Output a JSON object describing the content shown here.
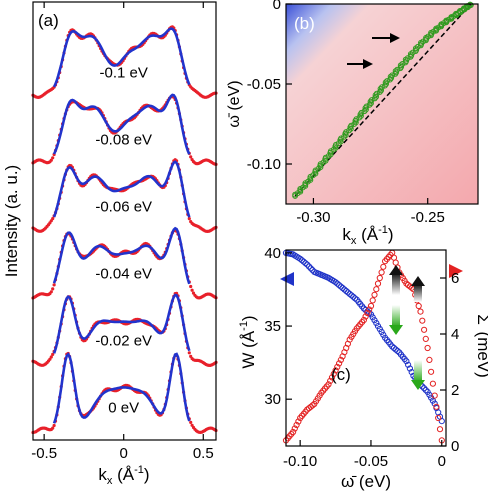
{
  "colors": {
    "exp": "#e8202a",
    "fit": "#2233cc",
    "green": "#2f9a1e",
    "blue": "#1f33c8",
    "red": "#e32222"
  },
  "chart_data": [
    {
      "type": "line",
      "panel_label": "(a)",
      "xlabel_main": "k",
      "xlabel_sub": "x",
      "xlabel_unit": " (Å",
      "xlabel_sup": "-1",
      "xlabel_close": ")",
      "ylabel": "Intensity (a. u.)",
      "xlim": [
        -0.57,
        0.58
      ],
      "xticks": [
        "-0.5",
        "0",
        "0.5"
      ],
      "xtick_values": [
        -0.5,
        0,
        0.5
      ],
      "series": [
        {
          "label": "-0.1 eV",
          "offset": 5,
          "peaks": [
            [
              -0.34,
              0.75,
              0.05
            ],
            [
              -0.2,
              1.0,
              0.09
            ],
            [
              0.02,
              0.45,
              0.06
            ],
            [
              0.18,
              1.0,
              0.09
            ],
            [
              0.32,
              0.8,
              0.05
            ]
          ]
        },
        {
          "label": "-0.08 eV",
          "offset": 4,
          "peaks": [
            [
              -0.34,
              0.8,
              0.05
            ],
            [
              -0.19,
              0.95,
              0.09
            ],
            [
              0.02,
              0.4,
              0.06
            ],
            [
              0.17,
              0.95,
              0.09
            ],
            [
              0.32,
              0.9,
              0.045
            ]
          ]
        },
        {
          "label": "-0.06 eV",
          "offset": 3,
          "peaks": [
            [
              -0.35,
              0.9,
              0.05
            ],
            [
              -0.18,
              0.9,
              0.09
            ],
            [
              0.0,
              0.4,
              0.06
            ],
            [
              0.16,
              0.9,
              0.09
            ],
            [
              0.33,
              1.0,
              0.045
            ]
          ]
        },
        {
          "label": "-0.04 eV",
          "offset": 2,
          "peaks": [
            [
              -0.35,
              1.0,
              0.05
            ],
            [
              -0.16,
              0.85,
              0.09
            ],
            [
              0.0,
              0.35,
              0.06
            ],
            [
              0.15,
              0.85,
              0.09
            ],
            [
              0.33,
              1.05,
              0.045
            ]
          ]
        },
        {
          "label": "-0.02 eV",
          "offset": 1,
          "peaks": [
            [
              -0.35,
              1.1,
              0.045
            ],
            [
              -0.14,
              0.7,
              0.09
            ],
            [
              0.0,
              0.3,
              0.06
            ],
            [
              0.14,
              0.7,
              0.09
            ],
            [
              0.33,
              1.1,
              0.045
            ]
          ]
        },
        {
          "label": "0 eV",
          "offset": 0,
          "peaks": [
            [
              -0.35,
              1.3,
              0.04
            ],
            [
              -0.12,
              0.6,
              0.08
            ],
            [
              0.0,
              0.35,
              0.06
            ],
            [
              0.12,
              0.6,
              0.08
            ],
            [
              0.33,
              1.3,
              0.04
            ]
          ]
        }
      ]
    },
    {
      "type": "scatter",
      "panel_label": "(b)",
      "xlabel_main": "k",
      "xlabel_sub": "x",
      "xlabel_unit": " (Å",
      "xlabel_sup": "-1",
      "xlabel_close": ")",
      "ylabel": "ω̄ (eV)",
      "xlim": [
        -0.312,
        -0.228
      ],
      "ylim": [
        -0.125,
        0.0
      ],
      "xticks": [
        "-0.30",
        "-0.25"
      ],
      "xtick_values": [
        -0.3,
        -0.25
      ],
      "yticks": [
        "0",
        "-0.05",
        "-0.10"
      ],
      "ytick_values": [
        0,
        -0.05,
        -0.1
      ],
      "bare_band": {
        "x": [
          -0.308,
          -0.231
        ],
        "y": [
          -0.12,
          0.0
        ]
      },
      "dispersion": {
        "x": [
          -0.308,
          -0.303,
          -0.298,
          -0.293,
          -0.288,
          -0.283,
          -0.278,
          -0.273,
          -0.268,
          -0.263,
          -0.258,
          -0.253,
          -0.248,
          -0.243,
          -0.238,
          -0.234,
          -0.231
        ],
        "y": [
          -0.12,
          -0.112,
          -0.103,
          -0.094,
          -0.085,
          -0.076,
          -0.067,
          -0.058,
          -0.049,
          -0.041,
          -0.033,
          -0.025,
          -0.018,
          -0.012,
          -0.007,
          -0.003,
          0.0
        ]
      }
    },
    {
      "type": "scatter",
      "panel_label": "(c)",
      "xlabel": "ω̄ (eV)",
      "ylabel_left_main": "W (Å",
      "ylabel_left_sup": "-1",
      "ylabel_left_close": ")",
      "ylabel_right_main": "Σ",
      "ylabel_right_sup": "'",
      "ylabel_right_unit": " (meV)",
      "xlim": [
        -0.11,
        0.003
      ],
      "ylim_left": [
        26.8,
        40.2
      ],
      "ylim_right": [
        0,
        7.0
      ],
      "xticks": [
        "-0.10",
        "-0.05",
        "0"
      ],
      "xtick_values": [
        -0.1,
        -0.05,
        0
      ],
      "yticks_left": [
        "30",
        "35",
        "40"
      ],
      "ytick_values_left": [
        30,
        35,
        40
      ],
      "yticks_right": [
        "0",
        "2",
        "4",
        "6"
      ],
      "ytick_values_right": [
        0,
        2,
        4,
        6
      ],
      "width_series": {
        "name": "W",
        "x": [
          -0.11,
          -0.105,
          -0.1,
          -0.095,
          -0.09,
          -0.085,
          -0.08,
          -0.075,
          -0.07,
          -0.065,
          -0.06,
          -0.055,
          -0.05,
          -0.045,
          -0.04,
          -0.035,
          -0.03,
          -0.025,
          -0.02,
          -0.015,
          -0.01,
          -0.005,
          0.0
        ],
        "y": [
          40.0,
          39.9,
          39.6,
          39.2,
          38.7,
          38.5,
          38.3,
          38.0,
          37.6,
          37.2,
          36.8,
          36.2,
          35.8,
          35.0,
          34.2,
          33.6,
          33.2,
          32.6,
          31.6,
          31.0,
          30.5,
          29.7,
          28.5
        ]
      },
      "sigma_series": {
        "name": "Σ'",
        "x": [
          -0.11,
          -0.105,
          -0.1,
          -0.095,
          -0.09,
          -0.085,
          -0.08,
          -0.075,
          -0.07,
          -0.065,
          -0.06,
          -0.055,
          -0.05,
          -0.045,
          -0.04,
          -0.035,
          -0.03,
          -0.025,
          -0.02,
          -0.015,
          -0.01,
          -0.005,
          0.0
        ],
        "y": [
          0.2,
          0.5,
          1.0,
          1.3,
          1.5,
          1.9,
          2.2,
          2.7,
          3.2,
          3.8,
          4.2,
          4.5,
          5.0,
          5.8,
          6.6,
          6.9,
          6.2,
          5.8,
          5.6,
          4.8,
          3.5,
          1.8,
          0.2
        ]
      }
    }
  ]
}
